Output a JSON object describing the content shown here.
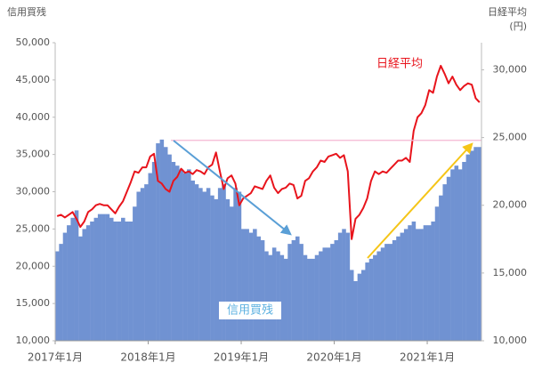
{
  "chart_data": {
    "type": "bar",
    "ylabel": "信用買残",
    "y2label": [
      "日経平均",
      "(円)"
    ],
    "categories": [
      "2017年1月",
      null,
      null,
      null,
      null,
      null,
      null,
      null,
      null,
      null,
      null,
      null,
      null,
      null,
      null,
      null,
      null,
      null,
      null,
      null,
      null,
      null,
      null,
      null,
      "2018年1月",
      null,
      null,
      null,
      null,
      null,
      null,
      null,
      null,
      null,
      null,
      null,
      null,
      null,
      null,
      null,
      null,
      null,
      null,
      null,
      null,
      null,
      null,
      null,
      "2019年1月",
      null,
      null,
      null,
      null,
      null,
      null,
      null,
      null,
      null,
      null,
      null,
      null,
      null,
      null,
      null,
      null,
      null,
      null,
      null,
      null,
      null,
      null,
      null,
      "2020年1月",
      null,
      null,
      null,
      null,
      null,
      null,
      null,
      null,
      null,
      null,
      null,
      null,
      null,
      null,
      null,
      null,
      null,
      null,
      null,
      null,
      null,
      null,
      null,
      "2021年1月",
      null,
      null,
      null,
      null,
      null,
      null,
      null,
      null,
      null,
      null,
      null,
      null,
      null
    ],
    "series": [
      {
        "name": "信用買残",
        "color": "#7092d2",
        "label_color": "#5bb0e0",
        "values": [
          22000,
          23000,
          24500,
          25500,
          26500,
          27500,
          24000,
          25000,
          25500,
          26000,
          26500,
          27000,
          27000,
          27000,
          26500,
          26000,
          26000,
          26500,
          26000,
          26000,
          28000,
          30000,
          30500,
          31000,
          32500,
          34000,
          36500,
          37000,
          36000,
          35000,
          34000,
          33500,
          33000,
          32500,
          33000,
          31500,
          31000,
          30500,
          30000,
          30500,
          29500,
          29000,
          30500,
          31000,
          29000,
          28000,
          30500,
          30000,
          25000,
          25000,
          24500,
          25000,
          24000,
          23500,
          22000,
          21500,
          22500,
          22000,
          21500,
          21000,
          23000,
          23500,
          24000,
          23000,
          21500,
          21000,
          21000,
          21500,
          22000,
          22500,
          22500,
          23000,
          23500,
          24500,
          25000,
          24500,
          19500,
          18000,
          19000,
          19500,
          20500,
          21000,
          21500,
          22000,
          22500,
          23000,
          23000,
          23500,
          24000,
          24500,
          25000,
          25500,
          26000,
          25000,
          25000,
          25500,
          25500,
          26000,
          28000,
          29500,
          31000,
          32000,
          33000,
          33500,
          33000,
          34000,
          35000,
          35500,
          36000,
          36000
        ]
      },
      {
        "name": "日経平均",
        "type": "line",
        "axis": "y2",
        "color": "#e8141c",
        "values": [
          19200,
          19300,
          19100,
          19300,
          19500,
          19000,
          18400,
          18800,
          19500,
          19700,
          20000,
          20100,
          20000,
          20000,
          19700,
          19400,
          19900,
          20300,
          21000,
          21700,
          22500,
          22400,
          22800,
          22800,
          23600,
          23800,
          21800,
          21600,
          21200,
          21000,
          21800,
          22100,
          22700,
          22400,
          22500,
          22300,
          22600,
          22500,
          22300,
          22800,
          23000,
          23900,
          22500,
          21200,
          22000,
          22200,
          21600,
          20000,
          20500,
          20700,
          20900,
          21400,
          21300,
          21200,
          21800,
          22200,
          21300,
          20900,
          21200,
          21300,
          21600,
          21500,
          20500,
          20700,
          21800,
          22000,
          22500,
          22800,
          23300,
          23200,
          23600,
          23700,
          23800,
          23500,
          23700,
          22500,
          17500,
          19000,
          19300,
          19800,
          20500,
          21800,
          22500,
          22300,
          22500,
          22400,
          22700,
          23000,
          23300,
          23300,
          23500,
          23200,
          25500,
          26500,
          26800,
          27400,
          28500,
          28300,
          29500,
          30300,
          29700,
          29000,
          29500,
          28900,
          28500,
          28800,
          29000,
          28900,
          27900,
          27600
        ]
      }
    ],
    "ylim": [
      10000,
      50000
    ],
    "yticks": [
      {
        "value": 10000,
        "label": "10,000"
      },
      {
        "value": 15000,
        "label": "15,000"
      },
      {
        "value": 20000,
        "label": "20,000"
      },
      {
        "value": 25000,
        "label": "25,000"
      },
      {
        "value": 30000,
        "label": "30,000"
      },
      {
        "value": 35000,
        "label": "35,000"
      },
      {
        "value": 40000,
        "label": "40,000"
      },
      {
        "value": 45000,
        "label": "45,000"
      },
      {
        "value": 50000,
        "label": "50,000"
      }
    ],
    "y2lim": [
      10000,
      32000
    ],
    "y2ticks": [
      {
        "value": 10000,
        "label": "10,000"
      },
      {
        "value": 15000,
        "label": "15,000"
      },
      {
        "value": 20000,
        "label": "20,000"
      },
      {
        "value": 25000,
        "label": "25,000"
      },
      {
        "value": 30000,
        "label": "30,000"
      }
    ],
    "hline": 36900,
    "hline_color": "#f4b6d2"
  }
}
